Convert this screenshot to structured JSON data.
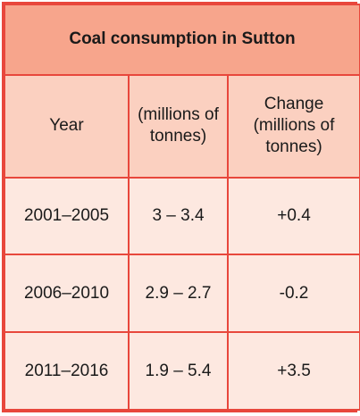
{
  "table": {
    "title": "Coal consumption in Sutton",
    "headers": [
      [
        "Year"
      ],
      [
        "(millions of",
        "tonnes)"
      ],
      [
        "Change",
        "(millions of",
        "tonnes)"
      ]
    ],
    "rows": [
      {
        "year": "2001–2005",
        "range": "3 – 3.4",
        "change": "+0.4"
      },
      {
        "year": "2006–2010",
        "range": "2.9 – 2.7",
        "change": "-0.2"
      },
      {
        "year": "2011–2016",
        "range": "1.9 – 5.4",
        "change": "+3.5"
      }
    ],
    "colors": {
      "border": "#e8473c",
      "title_bg": "#f7a58c",
      "header_bg": "#fbd0c0",
      "cell_bg": "#fde8e0"
    }
  }
}
